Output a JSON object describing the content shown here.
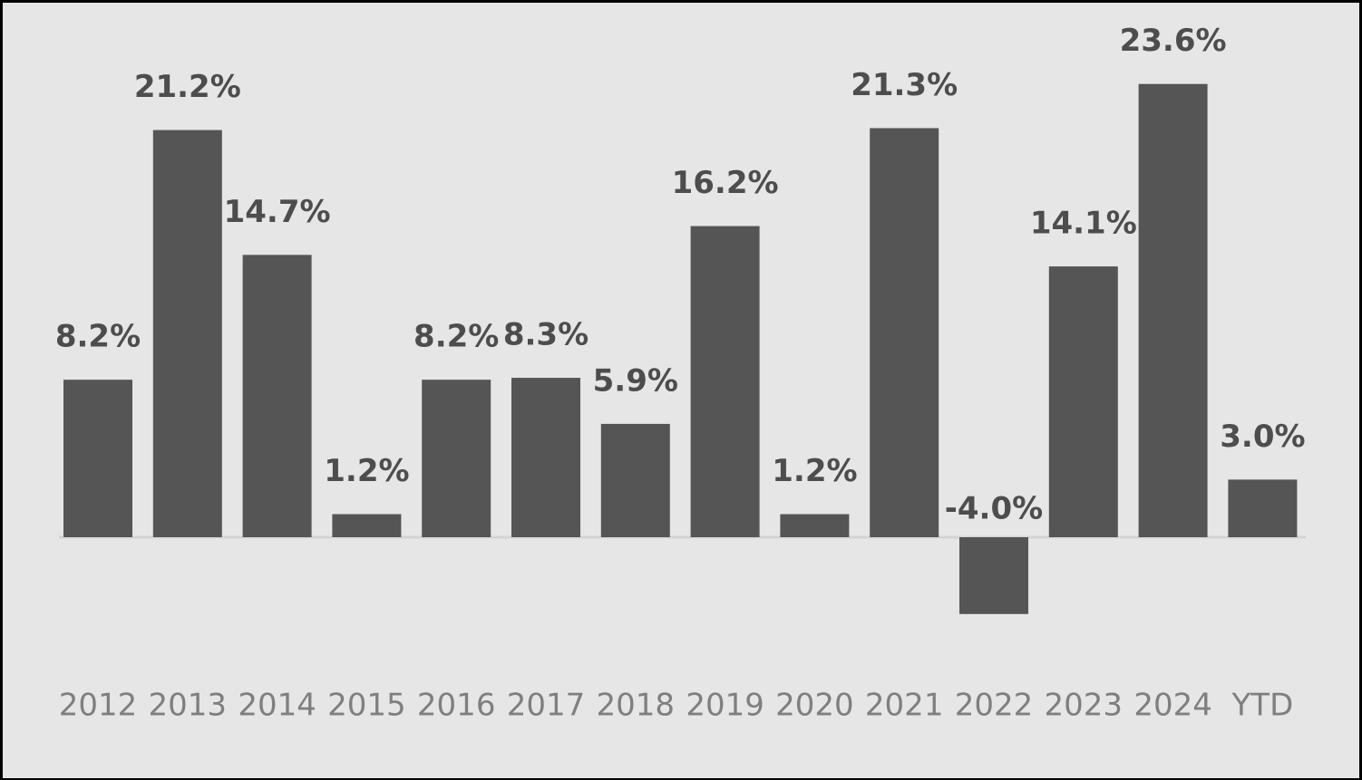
{
  "chart_data": {
    "type": "bar",
    "categories": [
      "2012",
      "2013",
      "2014",
      "2015",
      "2016",
      "2017",
      "2018",
      "2019",
      "2020",
      "2021",
      "2022",
      "2023",
      "2024",
      "YTD"
    ],
    "values": [
      8.2,
      21.2,
      14.7,
      1.2,
      8.2,
      8.3,
      5.9,
      16.2,
      1.2,
      21.3,
      -4.0,
      14.1,
      23.6,
      3.0
    ],
    "value_labels": [
      "8.2%",
      "21.2%",
      "14.7%",
      "1.2%",
      "8.2%",
      "8.3%",
      "5.9%",
      "16.2%",
      "1.2%",
      "21.3%",
      "-4.0%",
      "14.1%",
      "23.6%",
      "3.0%"
    ],
    "color": "#555555"
  }
}
